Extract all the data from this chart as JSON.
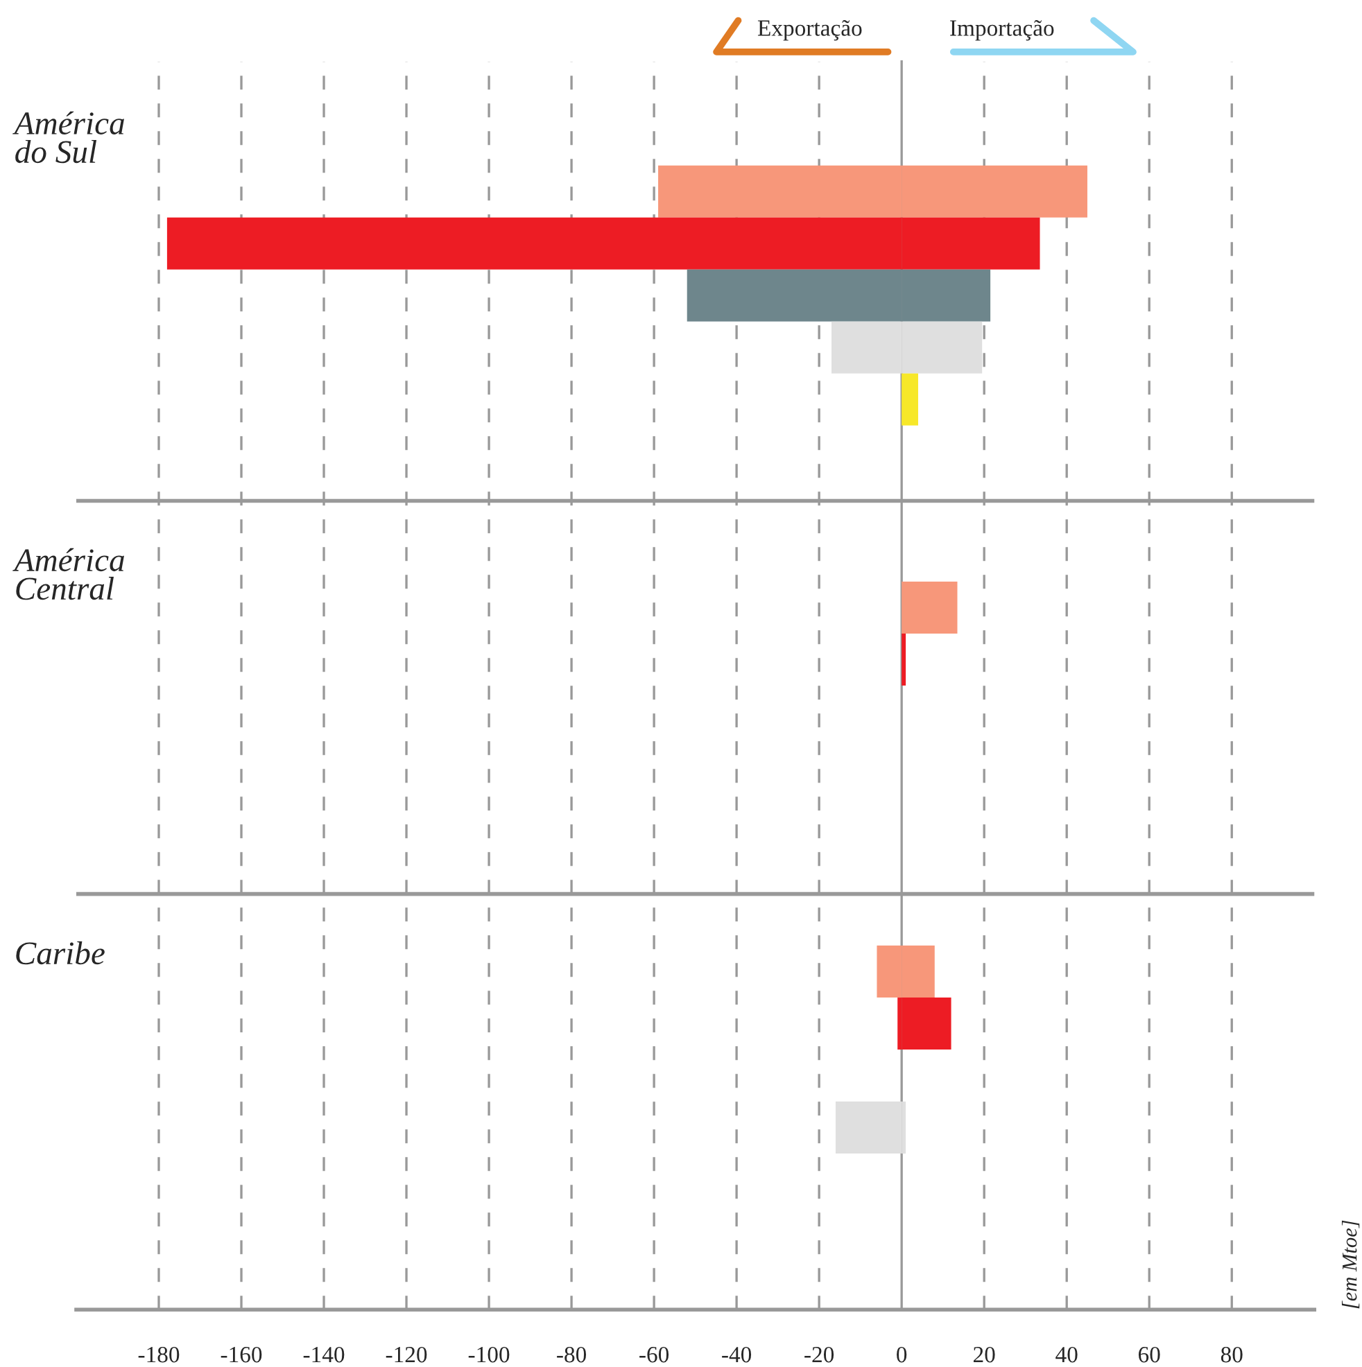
{
  "chart_data": {
    "type": "bar",
    "orientation": "horizontal",
    "stacked": true,
    "categories": [
      null,
      null,
      null,
      null,
      null,
      null,
      null,
      null,
      null,
      null,
      null,
      null,
      null,
      null,
      null,
      null,
      null,
      null,
      null,
      null,
      null,
      null,
      null,
      null
    ],
    "series": [
      {
        "colors": [
          null,
          null,
          "#f7977a",
          "#ed1c24",
          "#6e868c",
          "#dfdfdf",
          "#f7e829",
          null,
          null,
          null,
          "#f7977a",
          "#ed1c24",
          null,
          null,
          null,
          null,
          null,
          "#f7977a",
          "#ed1c24",
          null,
          "#dfdfdf",
          null,
          null,
          null
        ],
        "values": [
          null,
          null,
          -59,
          -178,
          -52,
          -17,
          null,
          null,
          null,
          null,
          null,
          null,
          null,
          null,
          null,
          null,
          null,
          -6,
          -1,
          null,
          -16,
          null,
          null,
          null
        ]
      },
      {
        "colors": [
          null,
          null,
          "#f7977a",
          "#ed1c24",
          "#6e868c",
          "#dfdfdf",
          "#f7e829",
          null,
          null,
          null,
          "#f7977a",
          "#ed1c24",
          null,
          null,
          null,
          null,
          null,
          "#f7977a",
          "#ed1c24",
          null,
          "#dfdfdf",
          null,
          null,
          null
        ],
        "values": [
          null,
          null,
          45,
          33.5,
          21.5,
          19.5,
          4,
          null,
          null,
          null,
          13.5,
          1,
          null,
          null,
          null,
          null,
          null,
          8,
          12,
          null,
          1,
          null,
          null,
          null
        ]
      }
    ],
    "xlim": [
      -200,
      100
    ],
    "xticks": [
      -180,
      -160,
      -140,
      -120,
      -100,
      -80,
      -60,
      -40,
      -20,
      0,
      20,
      40,
      60,
      80
    ],
    "grid": "x",
    "tick_labels": "x",
    "annotations": [
      "América\ndo Sul",
      "América\nCentral",
      "Caribe",
      "[em Mtoe]",
      "Exportação",
      "Importação"
    ]
  }
}
